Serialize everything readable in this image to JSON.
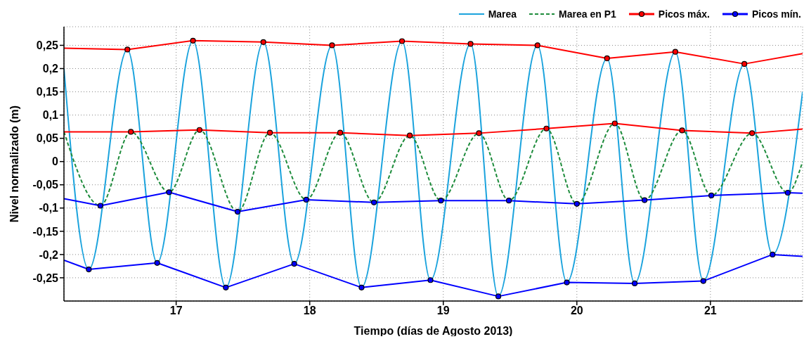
{
  "chart_data": {
    "type": "line",
    "xlabel": "Tiempo (días de Agosto 2013)",
    "ylabel": "Nivel normalizado (m)",
    "xlim": [
      16.16,
      21.69
    ],
    "ylim": [
      -0.3,
      0.29
    ],
    "xticks": [
      17,
      18,
      19,
      20,
      21
    ],
    "yticks": [
      {
        "value": -0.25,
        "label": "-0,25"
      },
      {
        "value": -0.2,
        "label": "-0,2"
      },
      {
        "value": -0.15,
        "label": "-0,15"
      },
      {
        "value": -0.1,
        "label": "-0,1"
      },
      {
        "value": -0.05,
        "label": "-0,05"
      },
      0,
      {
        "value": 0.05,
        "label": "0,05"
      },
      {
        "value": 0.1,
        "label": "0,1"
      },
      {
        "value": 0.15,
        "label": "0,15"
      },
      {
        "value": 0.2,
        "label": "0,2"
      },
      {
        "value": 0.25,
        "label": "0,25"
      }
    ],
    "grid": true,
    "legend": "top right",
    "series": [
      {
        "name": "Marea",
        "color": "#1ba3dd",
        "x": [
          16.16,
          16.346,
          16.635,
          16.858,
          17.126,
          17.372,
          17.653,
          17.884,
          18.167,
          18.388,
          18.691,
          18.904,
          19.204,
          19.412,
          19.705,
          19.925,
          20.226,
          20.433,
          20.737,
          20.947,
          21.254,
          21.465,
          21.69
        ],
        "values": [
          0.2,
          -0.232,
          0.241,
          -0.218,
          0.26,
          -0.271,
          0.257,
          -0.22,
          0.25,
          -0.271,
          0.259,
          -0.255,
          0.253,
          -0.29,
          0.25,
          -0.26,
          0.222,
          -0.262,
          0.236,
          -0.257,
          0.21,
          -0.2,
          0.15
        ]
      },
      {
        "name": "Marea en P1",
        "color": "#1e8c3c",
        "line_style": "dashed",
        "x": [
          16.16,
          16.433,
          16.661,
          16.947,
          17.175,
          17.46,
          17.702,
          17.974,
          18.228,
          18.481,
          18.749,
          18.982,
          19.267,
          19.491,
          19.772,
          20.0,
          20.284,
          20.507,
          20.788,
          21.007,
          21.312,
          21.579,
          21.69
        ],
        "values": [
          0.064,
          -0.095,
          0.064,
          -0.066,
          0.068,
          -0.108,
          0.062,
          -0.082,
          0.062,
          -0.088,
          0.056,
          -0.084,
          0.061,
          -0.084,
          0.071,
          -0.091,
          0.082,
          -0.083,
          0.067,
          -0.073,
          0.061,
          -0.067,
          0.0
        ]
      },
      {
        "name": "Picos máx.",
        "color": "#ff0000",
        "marker": "circle",
        "x": [
          16.16,
          16.635,
          17.126,
          17.653,
          18.167,
          18.691,
          19.204,
          19.705,
          20.226,
          20.737,
          21.254,
          21.69
        ],
        "values": [
          0.244,
          0.241,
          0.26,
          0.257,
          0.25,
          0.259,
          0.253,
          0.25,
          0.222,
          0.236,
          0.21,
          0.232
        ]
      },
      {
        "color": "#ff0000",
        "marker": "circle",
        "x": [
          16.16,
          16.661,
          17.175,
          17.702,
          18.228,
          18.749,
          19.267,
          19.772,
          20.284,
          20.788,
          21.312,
          21.69
        ],
        "values": [
          0.064,
          0.064,
          0.068,
          0.062,
          0.062,
          0.056,
          0.061,
          0.071,
          0.082,
          0.067,
          0.061,
          0.07
        ]
      },
      {
        "name": "Picos mín.",
        "color": "#0000ff",
        "marker": "circle",
        "x": [
          16.16,
          16.433,
          16.947,
          17.46,
          17.974,
          18.481,
          18.982,
          19.491,
          20.0,
          20.507,
          21.007,
          21.579,
          21.69
        ],
        "values": [
          -0.08,
          -0.095,
          -0.066,
          -0.108,
          -0.082,
          -0.088,
          -0.084,
          -0.084,
          -0.091,
          -0.083,
          -0.073,
          -0.067,
          -0.068
        ]
      },
      {
        "color": "#0000ff",
        "marker": "circle",
        "x": [
          16.16,
          16.346,
          16.858,
          17.372,
          17.884,
          18.388,
          18.904,
          19.412,
          19.925,
          20.433,
          20.947,
          21.465,
          21.69
        ],
        "values": [
          -0.212,
          -0.232,
          -0.218,
          -0.271,
          -0.22,
          -0.271,
          -0.255,
          -0.29,
          -0.26,
          -0.262,
          -0.257,
          -0.2,
          -0.204
        ]
      }
    ]
  }
}
